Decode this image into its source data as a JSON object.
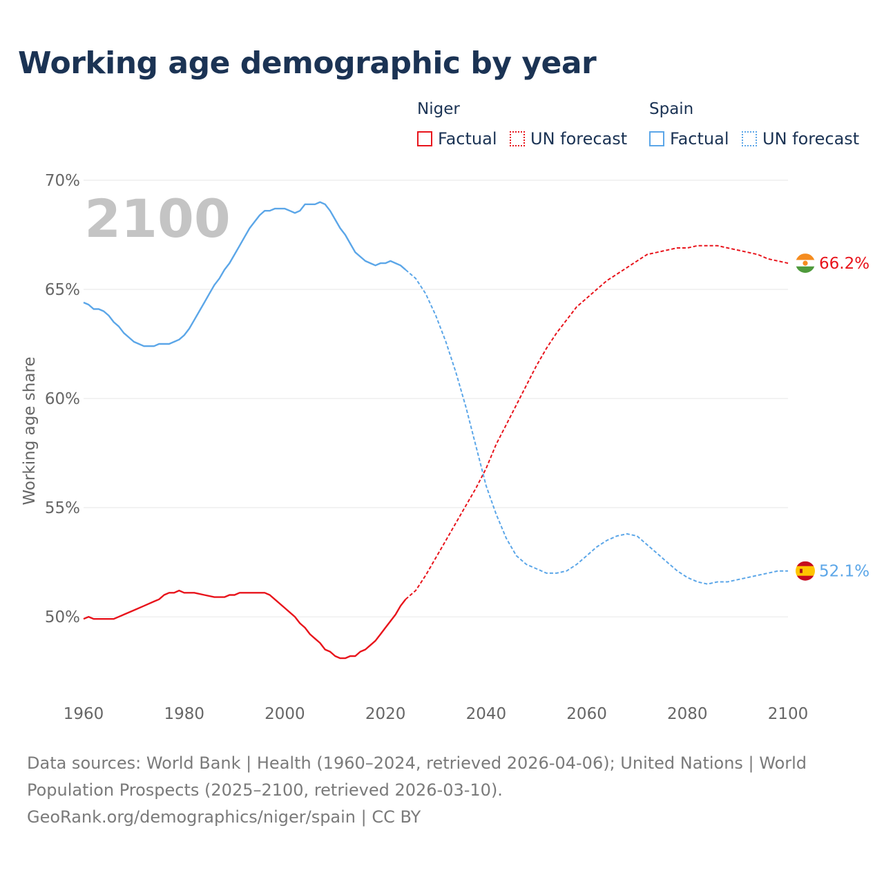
{
  "title": "Working age demographic by year",
  "legend": {
    "groups": [
      {
        "name": "Niger",
        "color": "#e8131b",
        "factual_label": "Factual",
        "forecast_label": "UN forecast"
      },
      {
        "name": "Spain",
        "color": "#5ba6e8",
        "factual_label": "Factual",
        "forecast_label": "UN forecast"
      }
    ]
  },
  "year_watermark": "2100",
  "footer": {
    "line1": "Data sources: World Bank | Health (1960–2024, retrieved 2026-04-06); United Nations | World",
    "line2": "Population Prospects (2025–2100, retrieved 2026-03-10).",
    "line3": "GeoRank.org/demographics/niger/spain | CC BY"
  },
  "chart_data": {
    "type": "line",
    "title": "Working age demographic by year",
    "xlabel": "",
    "ylabel": "Working age share",
    "xlim": [
      1960,
      2100
    ],
    "ylim": [
      46.3,
      70
    ],
    "x_ticks": [
      1960,
      1980,
      2000,
      2020,
      2040,
      2060,
      2080,
      2100
    ],
    "y_ticks": [
      50,
      55,
      60,
      65,
      70
    ],
    "y_tick_labels": [
      "50%",
      "55%",
      "60%",
      "65%",
      "70%"
    ],
    "grid": true,
    "forecast_start": 2024,
    "series": [
      {
        "name": "Niger",
        "color": "#e8131b",
        "end_label": "66.2%",
        "x": [
          1960,
          1961,
          1962,
          1964,
          1966,
          1968,
          1970,
          1972,
          1974,
          1975,
          1976,
          1977,
          1978,
          1979,
          1980,
          1982,
          1984,
          1986,
          1988,
          1989,
          1990,
          1991,
          1992,
          1994,
          1996,
          1997,
          1998,
          2000,
          2002,
          2003,
          2004,
          2005,
          2006,
          2007,
          2008,
          2009,
          2010,
          2011,
          2012,
          2013,
          2014,
          2015,
          2016,
          2017,
          2018,
          2019,
          2020,
          2021,
          2022,
          2023,
          2024,
          2026,
          2028,
          2030,
          2032,
          2034,
          2036,
          2038,
          2040,
          2042,
          2044,
          2046,
          2048,
          2050,
          2052,
          2054,
          2056,
          2058,
          2060,
          2062,
          2064,
          2066,
          2068,
          2070,
          2072,
          2074,
          2076,
          2078,
          2080,
          2082,
          2084,
          2086,
          2088,
          2090,
          2092,
          2094,
          2096,
          2098,
          2100
        ],
        "values": [
          49.9,
          50.0,
          49.9,
          49.9,
          49.9,
          50.1,
          50.3,
          50.5,
          50.7,
          50.8,
          51.0,
          51.1,
          51.1,
          51.2,
          51.1,
          51.1,
          51.0,
          50.9,
          50.9,
          51.0,
          51.0,
          51.1,
          51.1,
          51.1,
          51.1,
          51.0,
          50.8,
          50.4,
          50.0,
          49.7,
          49.5,
          49.2,
          49.0,
          48.8,
          48.5,
          48.4,
          48.2,
          48.1,
          48.1,
          48.2,
          48.2,
          48.4,
          48.5,
          48.7,
          48.9,
          49.2,
          49.5,
          49.8,
          50.1,
          50.5,
          50.8,
          51.2,
          51.9,
          52.7,
          53.5,
          54.3,
          55.1,
          55.9,
          56.8,
          57.9,
          58.8,
          59.7,
          60.6,
          61.5,
          62.3,
          63.0,
          63.6,
          64.2,
          64.6,
          65.0,
          65.4,
          65.7,
          66.0,
          66.3,
          66.6,
          66.7,
          66.8,
          66.9,
          66.9,
          67.0,
          67.0,
          67.0,
          66.9,
          66.8,
          66.7,
          66.6,
          66.4,
          66.3,
          66.2
        ]
      },
      {
        "name": "Spain",
        "color": "#5ba6e8",
        "end_label": "52.1%",
        "x": [
          1960,
          1961,
          1962,
          1963,
          1964,
          1965,
          1966,
          1967,
          1968,
          1969,
          1970,
          1971,
          1972,
          1973,
          1974,
          1975,
          1976,
          1977,
          1978,
          1979,
          1980,
          1981,
          1982,
          1983,
          1984,
          1985,
          1986,
          1987,
          1988,
          1989,
          1990,
          1991,
          1992,
          1993,
          1994,
          1995,
          1996,
          1997,
          1998,
          1999,
          2000,
          2001,
          2002,
          2003,
          2004,
          2005,
          2006,
          2007,
          2008,
          2009,
          2010,
          2011,
          2012,
          2013,
          2014,
          2015,
          2016,
          2017,
          2018,
          2019,
          2020,
          2021,
          2022,
          2023,
          2024,
          2026,
          2028,
          2030,
          2032,
          2034,
          2036,
          2038,
          2040,
          2042,
          2044,
          2046,
          2048,
          2050,
          2052,
          2054,
          2056,
          2058,
          2060,
          2062,
          2064,
          2066,
          2068,
          2070,
          2072,
          2074,
          2076,
          2078,
          2080,
          2082,
          2084,
          2086,
          2088,
          2090,
          2092,
          2094,
          2096,
          2098,
          2100
        ],
        "values": [
          64.4,
          64.3,
          64.1,
          64.1,
          64.0,
          63.8,
          63.5,
          63.3,
          63.0,
          62.8,
          62.6,
          62.5,
          62.4,
          62.4,
          62.4,
          62.5,
          62.5,
          62.5,
          62.6,
          62.7,
          62.9,
          63.2,
          63.6,
          64.0,
          64.4,
          64.8,
          65.2,
          65.5,
          65.9,
          66.2,
          66.6,
          67.0,
          67.4,
          67.8,
          68.1,
          68.4,
          68.6,
          68.6,
          68.7,
          68.7,
          68.7,
          68.6,
          68.5,
          68.6,
          68.9,
          68.9,
          68.9,
          69.0,
          68.9,
          68.6,
          68.2,
          67.8,
          67.5,
          67.1,
          66.7,
          66.5,
          66.3,
          66.2,
          66.1,
          66.2,
          66.2,
          66.3,
          66.2,
          66.1,
          65.9,
          65.5,
          64.8,
          63.8,
          62.6,
          61.2,
          59.6,
          57.8,
          56.0,
          54.7,
          53.6,
          52.8,
          52.4,
          52.2,
          52.0,
          52.0,
          52.1,
          52.4,
          52.8,
          53.2,
          53.5,
          53.7,
          53.8,
          53.7,
          53.3,
          52.9,
          52.5,
          52.1,
          51.8,
          51.6,
          51.5,
          51.6,
          51.6,
          51.7,
          51.8,
          51.9,
          52.0,
          52.1,
          52.1
        ]
      }
    ]
  }
}
